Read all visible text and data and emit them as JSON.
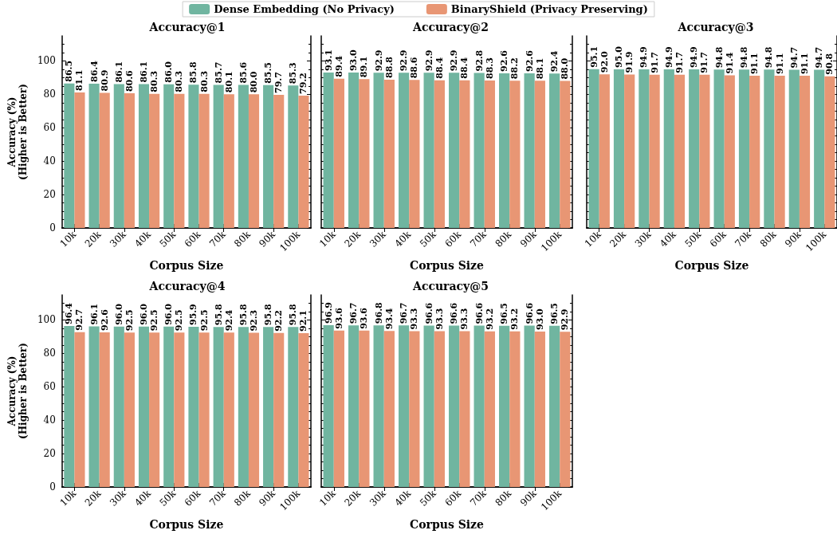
{
  "chart_data": [
    {
      "type": "bar",
      "title": "Accuracy@1",
      "xlabel": "Corpus Size",
      "ylabel": "Accuracy (%)\n(Higher is Better)",
      "categories": [
        "10k",
        "20k",
        "30k",
        "40k",
        "50k",
        "60k",
        "70k",
        "80k",
        "90k",
        "100k"
      ],
      "ylim": [
        0,
        115
      ],
      "yticks": [
        0,
        20,
        40,
        60,
        80,
        100
      ],
      "legend": "top",
      "grid": false,
      "series": [
        {
          "name": "Dense Embedding (No Privacy)",
          "color": "#70b5a0",
          "values": [
            86.5,
            86.4,
            86.1,
            86.1,
            86.0,
            85.8,
            85.7,
            85.6,
            85.5,
            85.3
          ],
          "value_labels": [
            "86.5",
            "86.4",
            "86.1",
            "86.1",
            "86.0",
            "85.8",
            "85.7",
            "85.6",
            "85.5",
            "85.3"
          ]
        },
        {
          "name": "BinaryShield (Privacy Preserving)",
          "color": "#e89674",
          "values": [
            81.1,
            80.9,
            80.6,
            80.3,
            80.3,
            80.3,
            80.1,
            80.0,
            79.7,
            79.2
          ],
          "value_labels": [
            "81.1",
            "80.9",
            "80.6",
            "80.3",
            "80.3",
            "80.3",
            "80.1",
            "80.0",
            "79.7",
            "79.2"
          ]
        }
      ]
    },
    {
      "type": "bar",
      "title": "Accuracy@2",
      "xlabel": "Corpus Size",
      "categories": [
        "10k",
        "20k",
        "30k",
        "40k",
        "50k",
        "60k",
        "70k",
        "80k",
        "90k",
        "100k"
      ],
      "ylim": [
        0,
        115
      ],
      "yticks": [
        0,
        20,
        40,
        60,
        80,
        100
      ],
      "tick_labels": "x",
      "grid": false,
      "series": [
        {
          "color": "#70b5a0",
          "values": [
            93.1,
            93.0,
            92.9,
            92.9,
            92.9,
            92.9,
            92.8,
            92.6,
            92.6,
            92.4
          ],
          "value_labels": [
            "93.1",
            "93.0",
            "92.9",
            "92.9",
            "92.9",
            "92.9",
            "92.8",
            "92.6",
            "92.6",
            "92.4"
          ]
        },
        {
          "color": "#e89674",
          "values": [
            89.4,
            89.1,
            88.8,
            88.6,
            88.4,
            88.4,
            88.3,
            88.2,
            88.1,
            88.0
          ],
          "value_labels": [
            "89.4",
            "89.1",
            "88.8",
            "88.6",
            "88.4",
            "88.4",
            "88.3",
            "88.2",
            "88.1",
            "88.0"
          ]
        }
      ]
    },
    {
      "type": "bar",
      "title": "Accuracy@3",
      "xlabel": "Corpus Size",
      "categories": [
        "10k",
        "20k",
        "30k",
        "40k",
        "50k",
        "60k",
        "70k",
        "80k",
        "90k",
        "100k"
      ],
      "ylim": [
        0,
        115
      ],
      "yticks": [
        0,
        20,
        40,
        60,
        80,
        100
      ],
      "tick_labels": "x",
      "grid": false,
      "series": [
        {
          "color": "#70b5a0",
          "values": [
            95.1,
            95.0,
            94.9,
            94.9,
            94.9,
            94.8,
            94.8,
            94.8,
            94.7,
            94.7
          ],
          "value_labels": [
            "95.1",
            "95.0",
            "94.9",
            "94.9",
            "94.9",
            "94.8",
            "94.8",
            "94.8",
            "94.7",
            "94.7"
          ]
        },
        {
          "color": "#e89674",
          "values": [
            92.0,
            91.9,
            91.7,
            91.7,
            91.7,
            91.4,
            91.1,
            91.1,
            91.1,
            90.8
          ],
          "value_labels": [
            "92.0",
            "91.9",
            "91.7",
            "91.7",
            "91.7",
            "91.4",
            "91.1",
            "91.1",
            "91.1",
            "90.8"
          ]
        }
      ]
    },
    {
      "type": "bar",
      "title": "Accuracy@4",
      "xlabel": "Corpus Size",
      "ylabel": "Accuracy (%)\n(Higher is Better)",
      "categories": [
        "10k",
        "20k",
        "30k",
        "40k",
        "50k",
        "60k",
        "70k",
        "80k",
        "90k",
        "100k"
      ],
      "ylim": [
        0,
        115
      ],
      "yticks": [
        0,
        20,
        40,
        60,
        80,
        100
      ],
      "grid": false,
      "series": [
        {
          "color": "#70b5a0",
          "values": [
            96.4,
            96.1,
            96.0,
            96.0,
            96.0,
            95.9,
            95.8,
            95.8,
            95.8,
            95.8
          ],
          "value_labels": [
            "96.4",
            "96.1",
            "96.0",
            "96.0",
            "96.0",
            "95.9",
            "95.8",
            "95.8",
            "95.8",
            "95.8"
          ]
        },
        {
          "color": "#e89674",
          "values": [
            92.7,
            92.6,
            92.5,
            92.5,
            92.5,
            92.5,
            92.4,
            92.3,
            92.2,
            92.1
          ],
          "value_labels": [
            "92.7",
            "92.6",
            "92.5",
            "92.5",
            "92.5",
            "92.5",
            "92.4",
            "92.3",
            "92.2",
            "92.1"
          ]
        }
      ]
    },
    {
      "type": "bar",
      "title": "Accuracy@5",
      "xlabel": "Corpus Size",
      "categories": [
        "10k",
        "20k",
        "30k",
        "40k",
        "50k",
        "60k",
        "70k",
        "80k",
        "90k",
        "100k"
      ],
      "ylim": [
        0,
        115
      ],
      "yticks": [
        0,
        20,
        40,
        60,
        80,
        100
      ],
      "tick_labels": "x",
      "grid": false,
      "series": [
        {
          "color": "#70b5a0",
          "values": [
            96.9,
            96.7,
            96.8,
            96.7,
            96.6,
            96.6,
            96.6,
            96.5,
            96.6,
            96.5
          ],
          "value_labels": [
            "96.9",
            "96.7",
            "96.8",
            "96.7",
            "96.6",
            "96.6",
            "96.6",
            "96.5",
            "96.6",
            "96.5"
          ]
        },
        {
          "color": "#e89674",
          "values": [
            93.6,
            93.6,
            93.4,
            93.3,
            93.3,
            93.3,
            93.2,
            93.2,
            93.0,
            92.9
          ],
          "value_labels": [
            "93.6",
            "93.6",
            "93.4",
            "93.3",
            "93.3",
            "93.3",
            "93.2",
            "93.2",
            "93.0",
            "92.9"
          ]
        }
      ]
    }
  ]
}
